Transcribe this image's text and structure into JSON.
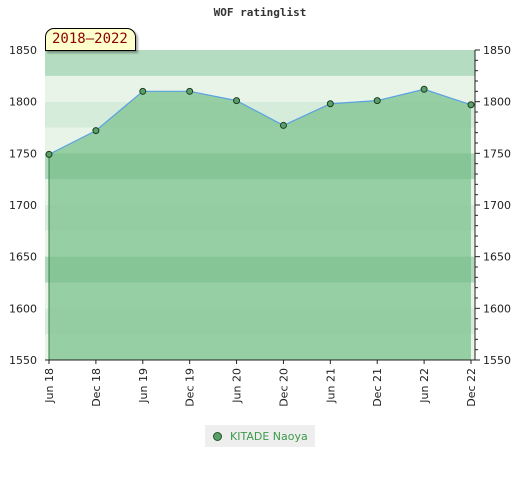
{
  "title": "WOF ratinglist",
  "period_badge": "2018–2022",
  "colors": {
    "band_light": "#e8f4e8",
    "band_mid": "#b4dcc0",
    "fill": "#88c898",
    "line": "#5aa0e0",
    "marker": "#5aa06a"
  },
  "chart_data": {
    "type": "area",
    "title": "WOF ratinglist",
    "categories": [
      "Jun 18",
      "Dec 18",
      "Jun 19",
      "Dec 19",
      "Jun 20",
      "Dec 20",
      "Jun 21",
      "Dec 21",
      "Jun 22",
      "Dec 22"
    ],
    "series": [
      {
        "name": "KITADE Naoya",
        "values": [
          1749,
          1772,
          1810,
          1810,
          1801,
          1777,
          1798,
          1801,
          1812,
          1797
        ]
      }
    ],
    "ylim": [
      1550,
      1850
    ],
    "yticks": [
      1550,
      1600,
      1650,
      1700,
      1750,
      1800,
      1850
    ],
    "y_axis_sides": "both",
    "legend_position": "bottom"
  }
}
